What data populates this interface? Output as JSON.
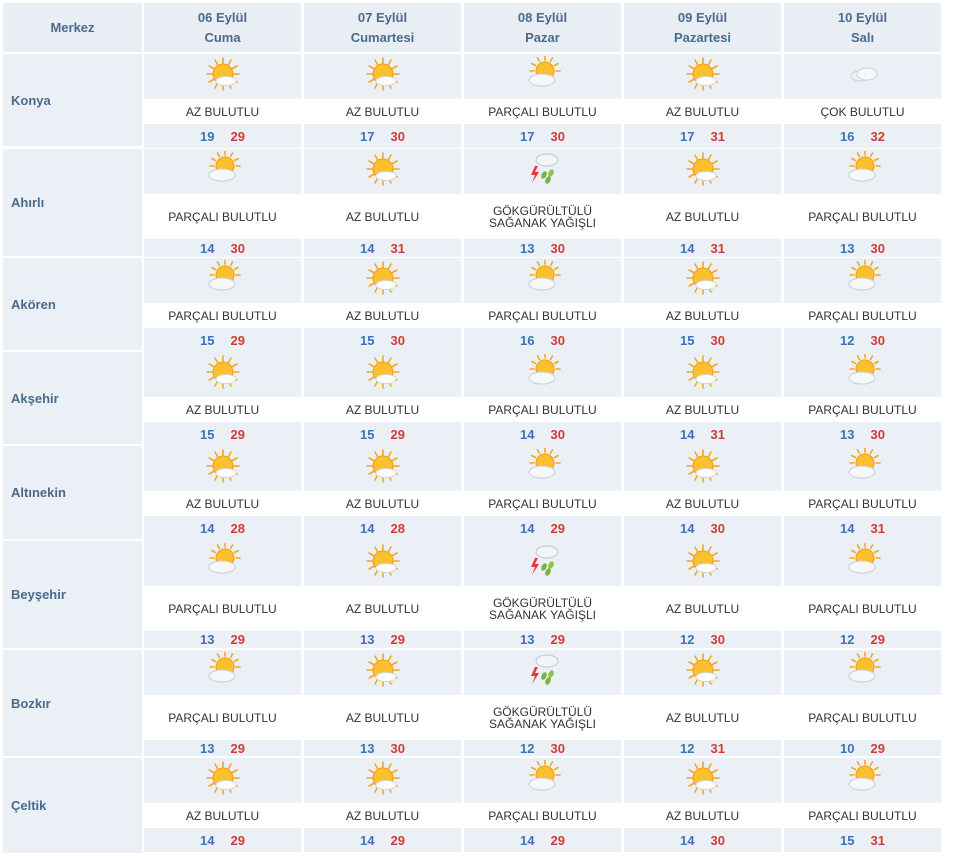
{
  "header": {
    "city_label": "Merkez",
    "days": [
      {
        "date": "06 Eylül",
        "day": "Cuma"
      },
      {
        "date": "07 Eylül",
        "day": "Cumartesi"
      },
      {
        "date": "08 Eylül",
        "day": "Pazar"
      },
      {
        "date": "09 Eylül",
        "day": "Pazartesi"
      },
      {
        "date": "10 Eylül",
        "day": "Salı"
      }
    ]
  },
  "icon_map": {
    "AZ BULUTLU": "sun-with-small-cloud-icon",
    "PARÇALI BULUTLU": "partly-cloudy-icon",
    "ÇOK BULUTLU": "cloudy-icon",
    "GÖKGÜRÜLTÜLÜ SAĞANAK YAĞIŞLI": "thunderstorm-rain-icon"
  },
  "colors": {
    "header_bg": "#e9eef4",
    "row_tint": "#eaf0f6",
    "min_temp": "#3d72b5",
    "max_temp": "#d23b34",
    "label": "#4a6a8c"
  },
  "rows": [
    {
      "city": "Konya",
      "days": [
        {
          "cond": "AZ BULUTLU",
          "min": "19",
          "max": "29"
        },
        {
          "cond": "AZ BULUTLU",
          "min": "17",
          "max": "30"
        },
        {
          "cond": "PARÇALI BULUTLU",
          "min": "17",
          "max": "30"
        },
        {
          "cond": "AZ BULUTLU",
          "min": "17",
          "max": "31"
        },
        {
          "cond": "ÇOK BULUTLU",
          "min": "16",
          "max": "32"
        }
      ]
    },
    {
      "city": "Ahırlı",
      "days": [
        {
          "cond": "PARÇALI BULUTLU",
          "min": "14",
          "max": "30"
        },
        {
          "cond": "AZ BULUTLU",
          "min": "14",
          "max": "31"
        },
        {
          "cond": "GÖKGÜRÜLTÜLÜ SAĞANAK YAĞIŞLI",
          "cond_lines": [
            "GÖKGÜRÜLTÜLÜ",
            "SAĞANAK YAĞIŞLI"
          ],
          "min": "13",
          "max": "30"
        },
        {
          "cond": "AZ BULUTLU",
          "min": "14",
          "max": "31"
        },
        {
          "cond": "PARÇALI BULUTLU",
          "min": "13",
          "max": "30"
        }
      ]
    },
    {
      "city": "Akören",
      "days": [
        {
          "cond": "PARÇALI BULUTLU",
          "min": "15",
          "max": "29"
        },
        {
          "cond": "AZ BULUTLU",
          "min": "15",
          "max": "30"
        },
        {
          "cond": "PARÇALI BULUTLU",
          "min": "16",
          "max": "30"
        },
        {
          "cond": "AZ BULUTLU",
          "min": "15",
          "max": "30"
        },
        {
          "cond": "PARÇALI BULUTLU",
          "min": "12",
          "max": "30"
        }
      ]
    },
    {
      "city": "Akşehir",
      "days": [
        {
          "cond": "AZ BULUTLU",
          "min": "15",
          "max": "29"
        },
        {
          "cond": "AZ BULUTLU",
          "min": "15",
          "max": "29"
        },
        {
          "cond": "PARÇALI BULUTLU",
          "min": "14",
          "max": "30"
        },
        {
          "cond": "AZ BULUTLU",
          "min": "14",
          "max": "31"
        },
        {
          "cond": "PARÇALI BULUTLU",
          "min": "13",
          "max": "30"
        }
      ]
    },
    {
      "city": "Altınekin",
      "days": [
        {
          "cond": "AZ BULUTLU",
          "min": "14",
          "max": "28"
        },
        {
          "cond": "AZ BULUTLU",
          "min": "14",
          "max": "28"
        },
        {
          "cond": "PARÇALI BULUTLU",
          "min": "14",
          "max": "29"
        },
        {
          "cond": "AZ BULUTLU",
          "min": "14",
          "max": "30"
        },
        {
          "cond": "PARÇALI BULUTLU",
          "min": "14",
          "max": "31"
        }
      ]
    },
    {
      "city": "Beyşehir",
      "days": [
        {
          "cond": "PARÇALI BULUTLU",
          "min": "13",
          "max": "29"
        },
        {
          "cond": "AZ BULUTLU",
          "min": "13",
          "max": "29"
        },
        {
          "cond": "GÖKGÜRÜLTÜLÜ SAĞANAK YAĞIŞLI",
          "cond_lines": [
            "GÖKGÜRÜLTÜLÜ",
            "SAĞANAK YAĞIŞLI"
          ],
          "min": "13",
          "max": "29"
        },
        {
          "cond": "AZ BULUTLU",
          "min": "12",
          "max": "30"
        },
        {
          "cond": "PARÇALI BULUTLU",
          "min": "12",
          "max": "29"
        }
      ]
    },
    {
      "city": "Bozkır",
      "days": [
        {
          "cond": "PARÇALI BULUTLU",
          "min": "13",
          "max": "29"
        },
        {
          "cond": "AZ BULUTLU",
          "min": "13",
          "max": "30"
        },
        {
          "cond": "GÖKGÜRÜLTÜLÜ SAĞANAK YAĞIŞLI",
          "cond_lines": [
            "GÖKGÜRÜLTÜLÜ",
            "SAĞANAK YAĞIŞLI"
          ],
          "min": "12",
          "max": "30"
        },
        {
          "cond": "AZ BULUTLU",
          "min": "12",
          "max": "31"
        },
        {
          "cond": "PARÇALI BULUTLU",
          "min": "10",
          "max": "29"
        }
      ]
    },
    {
      "city": "Çeltik",
      "days": [
        {
          "cond": "AZ BULUTLU",
          "min": "14",
          "max": "29"
        },
        {
          "cond": "AZ BULUTLU",
          "min": "14",
          "max": "29"
        },
        {
          "cond": "PARÇALI BULUTLU",
          "min": "14",
          "max": "29"
        },
        {
          "cond": "AZ BULUTLU",
          "min": "14",
          "max": "30"
        },
        {
          "cond": "PARÇALI BULUTLU",
          "min": "15",
          "max": "31"
        }
      ]
    }
  ]
}
